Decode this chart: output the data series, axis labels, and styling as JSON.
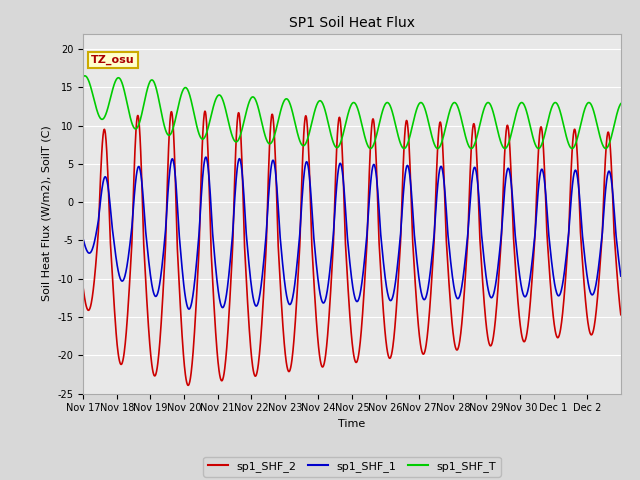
{
  "title": "SP1 Soil Heat Flux",
  "xlabel": "Time",
  "ylabel": "Soil Heat Flux (W/m2), SoilT (C)",
  "ylim": [
    -25,
    22
  ],
  "yticks": [
    -25,
    -20,
    -15,
    -10,
    -5,
    0,
    5,
    10,
    15,
    20
  ],
  "bg_color": "#d8d8d8",
  "plot_bg": "#e8e8e8",
  "tz_label": "TZ_osu",
  "legend_entries": [
    "sp1_SHF_2",
    "sp1_SHF_1",
    "sp1_SHF_T"
  ],
  "line_colors": [
    "#cc0000",
    "#0000cc",
    "#00cc00"
  ],
  "x_tick_labels": [
    "Nov 17",
    "Nov 18",
    "Nov 19",
    "Nov 20",
    "Nov 21",
    "Nov 22",
    "Nov 23",
    "Nov 24",
    "Nov 25",
    "Nov 26",
    "Nov 27",
    "Nov 28",
    "Nov 29",
    "Nov 30",
    "Dec 1",
    "Dec 2"
  ],
  "num_days": 16,
  "title_fontsize": 10,
  "tick_fontsize": 7,
  "ylabel_fontsize": 8,
  "xlabel_fontsize": 8,
  "legend_fontsize": 8,
  "linewidth": 1.2
}
